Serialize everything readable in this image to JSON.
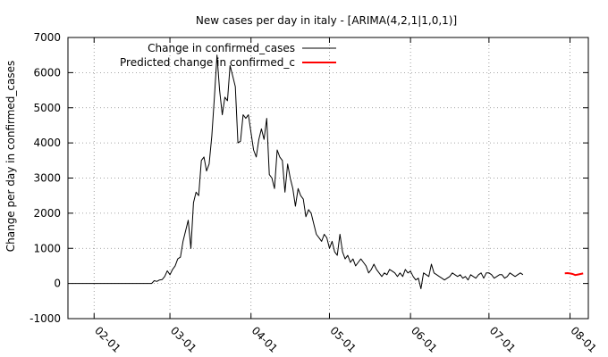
{
  "chart_data": {
    "type": "line",
    "title": "New cases per day in italy -  [ARIMA(4,2,1|1,0,1)]",
    "ylabel": "Change per day in confirmed_cases",
    "xlabel": "",
    "ylim": [
      -1000,
      7000
    ],
    "yticks": [
      -1000,
      0,
      1000,
      2000,
      3000,
      4000,
      5000,
      6000,
      7000
    ],
    "xlim": [
      "2020-01-22",
      "2020-08-08"
    ],
    "xticks": [
      {
        "date": "2020-02-01",
        "label": "02-01"
      },
      {
        "date": "2020-03-01",
        "label": "03-01"
      },
      {
        "date": "2020-04-01",
        "label": "04-01"
      },
      {
        "date": "2020-05-01",
        "label": "05-01"
      },
      {
        "date": "2020-06-01",
        "label": "06-01"
      },
      {
        "date": "2020-07-01",
        "label": "07-01"
      },
      {
        "date": "2020-08-01",
        "label": "08-01"
      }
    ],
    "grid": true,
    "legend_position": "top-left",
    "series": [
      {
        "name": "Change in confirmed_cases",
        "color": "#000000",
        "x_start": "2020-01-24",
        "values": [
          0,
          0,
          0,
          0,
          0,
          0,
          0,
          0,
          0,
          0,
          0,
          0,
          0,
          0,
          0,
          0,
          0,
          0,
          0,
          0,
          0,
          0,
          0,
          0,
          0,
          0,
          0,
          0,
          0,
          0,
          0,
          80,
          60,
          100,
          110,
          200,
          360,
          250,
          400,
          500,
          700,
          750,
          1200,
          1500,
          1800,
          1000,
          2300,
          2600,
          2500,
          3500,
          3600,
          3200,
          3400,
          4200,
          5300,
          6500,
          5500,
          4800,
          5300,
          5200,
          6200,
          5900,
          5600,
          4000,
          4050,
          4800,
          4700,
          4800,
          4300,
          3800,
          3600,
          4100,
          4400,
          4100,
          4700,
          3100,
          3000,
          2700,
          3800,
          3600,
          3500,
          2600,
          3400,
          3000,
          2700,
          2200,
          2700,
          2500,
          2400,
          1900,
          2100,
          2000,
          1700,
          1400,
          1300,
          1200,
          1400,
          1300,
          1000,
          1200,
          900,
          800,
          1400,
          900,
          700,
          800,
          600,
          700,
          500,
          600,
          700,
          600,
          500,
          300,
          400,
          550,
          400,
          300,
          200,
          300,
          250,
          400,
          350,
          300,
          200,
          300,
          200,
          400,
          300,
          350,
          200,
          100,
          150,
          -150,
          300,
          250,
          200,
          550,
          300,
          250,
          200,
          150,
          100,
          150,
          200,
          300,
          250,
          200,
          250,
          150,
          200,
          100,
          250,
          200,
          150,
          250,
          300,
          150,
          300,
          300,
          250,
          150,
          200,
          250,
          250,
          150,
          200,
          300,
          250,
          200,
          250,
          300,
          250
        ]
      },
      {
        "name": "Predicted change in confirmed_c",
        "color": "#ff0000",
        "x_start": "2020-07-30",
        "values": [
          290,
          295,
          285,
          270,
          240,
          255,
          270,
          285
        ]
      }
    ]
  }
}
